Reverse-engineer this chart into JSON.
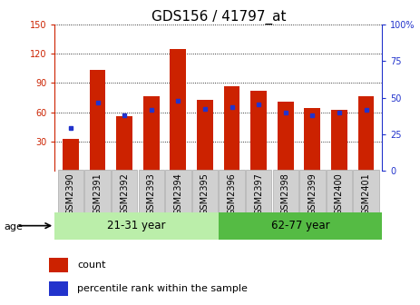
{
  "title": "GDS156 / 41797_at",
  "samples": [
    "GSM2390",
    "GSM2391",
    "GSM2392",
    "GSM2393",
    "GSM2394",
    "GSM2395",
    "GSM2396",
    "GSM2397",
    "GSM2398",
    "GSM2399",
    "GSM2400",
    "GSM2401"
  ],
  "red_values": [
    33,
    103,
    56,
    76,
    125,
    73,
    87,
    82,
    71,
    64,
    62,
    76
  ],
  "blue_values": [
    44,
    70,
    57,
    62,
    72,
    63,
    65,
    68,
    60,
    57,
    60,
    62
  ],
  "ylim_left": [
    0,
    150
  ],
  "ylim_right": [
    0,
    100
  ],
  "yticks_left": [
    30,
    60,
    90,
    120,
    150
  ],
  "yticks_right": [
    0,
    25,
    50,
    75,
    100
  ],
  "ytick_labels_right": [
    "0",
    "25",
    "50",
    "75",
    "100%"
  ],
  "group1_label": "21-31 year",
  "group2_label": "62-77 year",
  "group1_count": 6,
  "bar_color": "#cc2200",
  "blue_color": "#2233cc",
  "group_bg1": "#bbeeaa",
  "group_bg2": "#55bb44",
  "title_fontsize": 11,
  "tick_fontsize": 7,
  "legend_fontsize": 8,
  "bar_width": 0.6
}
